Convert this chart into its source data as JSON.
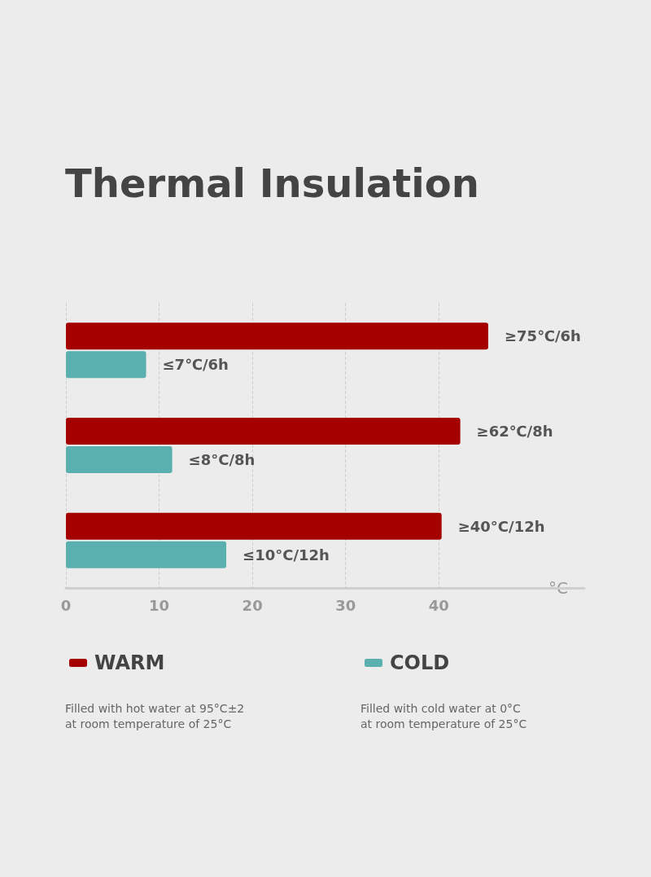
{
  "chart_data": {
    "type": "bar",
    "orientation": "horizontal",
    "title": "Thermal Insulation",
    "xlabel": "°C",
    "categories": [
      null,
      null,
      null
    ],
    "series": [
      {
        "name": "WARM",
        "color": "#a50000",
        "values": [
          45.3,
          42.3,
          40.3
        ],
        "value_labels": [
          "≥75℃/6h",
          "≥62℃/8h",
          "≥40°C/12h"
        ]
      },
      {
        "name": "COLD",
        "color": "#5aafaf",
        "values": [
          8.6,
          11.4,
          17.2
        ],
        "value_labels": [
          "≤7℃/6h",
          "≤8°C/8h",
          "≤10°C/12h"
        ]
      }
    ],
    "xlim": [
      0,
      55.6
    ],
    "xticks": [
      0,
      10,
      20,
      30,
      40
    ],
    "grid": "x",
    "legend": "bottom",
    "annotations": [
      "Filled with hot water at 95°C±2\nat room temperature of 25°C",
      "Filled with cold water at 0°C\nat room temperature of 25°C"
    ]
  }
}
